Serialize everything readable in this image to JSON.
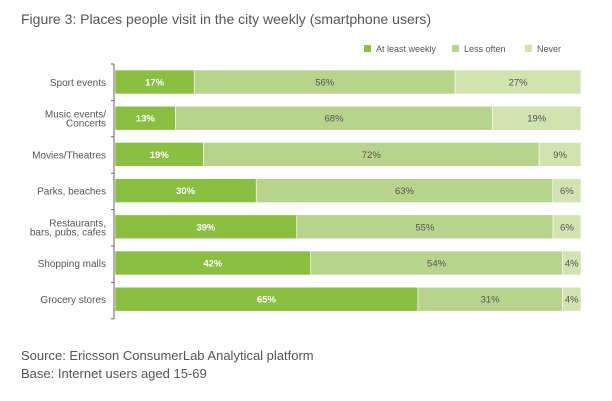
{
  "title": "Figure 3: Places people visit in the city weekly (smartphone users)",
  "source_lines": [
    "Source: Ericsson ConsumerLab Analytical platform",
    "Base: Internet users aged 15-69"
  ],
  "chart_data": {
    "type": "bar",
    "orientation": "horizontal-stacked-100",
    "title": "Figure 3: Places people visit in the city weekly (smartphone users)",
    "categories": [
      "Sport events",
      "Music events/\nConcerts",
      "Movies/Theatres",
      "Parks, beaches",
      "Restaurants,\nbars, pubs, cafes",
      "Shopping malls",
      "Grocery stores"
    ],
    "series": [
      {
        "name": "At least weekly",
        "color": "#8abf42",
        "label_color": "#ffffff",
        "values": [
          17,
          13,
          19,
          30,
          39,
          42,
          65
        ]
      },
      {
        "name": "Less often",
        "color": "#b8d48c",
        "label_color": "#555555",
        "values": [
          56,
          68,
          72,
          63,
          55,
          54,
          31
        ]
      },
      {
        "name": "Never",
        "color": "#d1e3b0",
        "label_color": "#555555",
        "values": [
          27,
          19,
          9,
          6,
          6,
          4,
          4
        ]
      }
    ],
    "legend": "top-right",
    "xlim": [
      0,
      100
    ],
    "grid": false
  }
}
